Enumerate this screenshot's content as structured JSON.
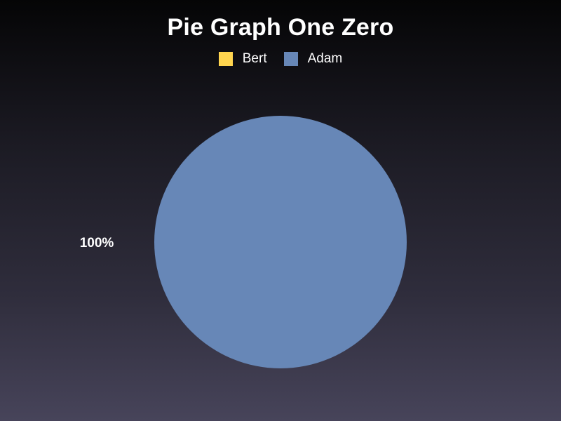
{
  "chart_data": {
    "type": "pie",
    "title": "Pie Graph One Zero",
    "legend_position": "top",
    "series": [
      {
        "name": "Bert",
        "value": 0,
        "color": "#ffd54f"
      },
      {
        "name": "Adam",
        "value": 100,
        "color": "#6787b7"
      }
    ],
    "data_labels": [
      "100%"
    ]
  }
}
